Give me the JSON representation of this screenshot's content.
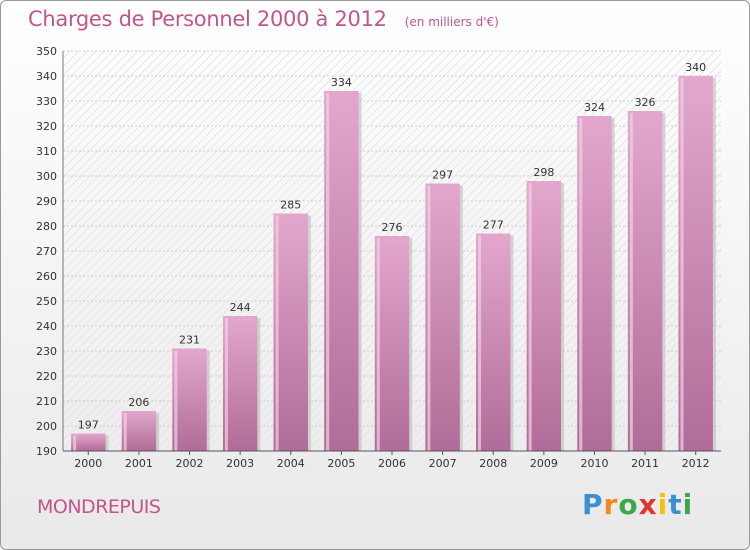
{
  "title": "Charges de Personnel 2000 à 2012",
  "subtitle": "(en milliers d'€)",
  "commune": "MONDREPUIS",
  "logo": {
    "letters": [
      "P",
      "r",
      "o",
      "x",
      "i",
      "t",
      "i"
    ],
    "colors": [
      "#3a8fd6",
      "#f08a1c",
      "#3aa84a",
      "#e0342e",
      "#f4c20d",
      "#3a8fd6",
      "#3aa84a"
    ]
  },
  "colors": {
    "bar_top": "#e3a7cd",
    "bar_bottom": "#b06c98",
    "text_accent": "#c2558c"
  },
  "chart_data": {
    "type": "bar",
    "categories": [
      "2000",
      "2001",
      "2002",
      "2003",
      "2004",
      "2005",
      "2006",
      "2007",
      "2008",
      "2009",
      "2010",
      "2011",
      "2012"
    ],
    "values": [
      197,
      206,
      231,
      244,
      285,
      334,
      276,
      297,
      277,
      298,
      324,
      326,
      340
    ],
    "ylim": [
      190,
      350
    ],
    "yticks": [
      190,
      200,
      210,
      220,
      230,
      240,
      250,
      260,
      270,
      280,
      290,
      300,
      310,
      320,
      330,
      340,
      350
    ],
    "grid": true,
    "data_labels": true
  }
}
